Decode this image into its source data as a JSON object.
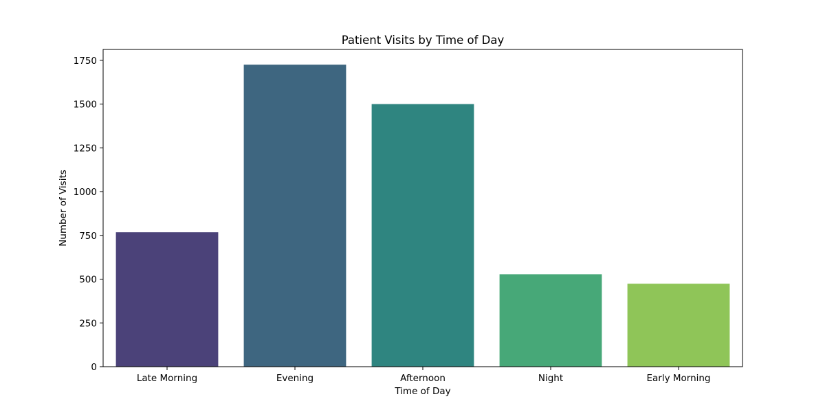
{
  "chart_data": {
    "type": "bar",
    "title": "Patient Visits by Time of Day",
    "xlabel": "Time of Day",
    "ylabel": "Number of Visits",
    "categories": [
      "Late Morning",
      "Evening",
      "Afternoon",
      "Night",
      "Early Morning"
    ],
    "values": [
      768,
      1725,
      1500,
      528,
      474
    ],
    "colors": [
      "#4b4279",
      "#3e6680",
      "#2f8580",
      "#47a878",
      "#8fc558"
    ],
    "ylim": [
      0,
      1812
    ],
    "yticks": [
      0,
      250,
      500,
      750,
      1000,
      1250,
      1500,
      1750
    ],
    "ytick_labels": [
      "0",
      "250",
      "500",
      "750",
      "1000",
      "1250",
      "1500",
      "1750"
    ],
    "grid": false,
    "legend": "none"
  }
}
